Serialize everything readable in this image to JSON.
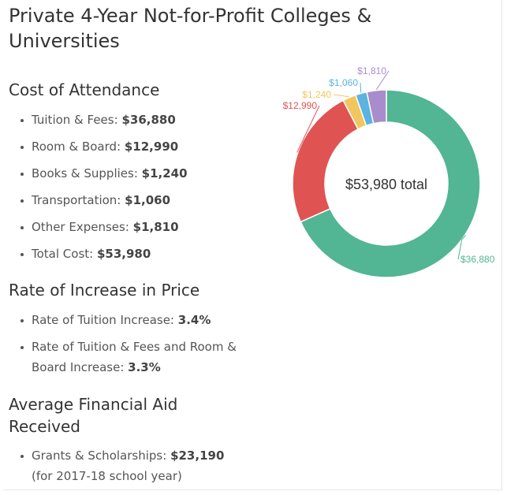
{
  "title": "Private 4-Year Not-for-Profit Colleges & Universities",
  "cost": {
    "heading": "Cost of Attendance",
    "items": [
      {
        "label": "Tuition & Fees:",
        "value": "$36,880"
      },
      {
        "label": "Room & Board:",
        "value": "$12,990"
      },
      {
        "label": "Books & Supplies:",
        "value": "$1,240"
      },
      {
        "label": "Transportation:",
        "value": "$1,060"
      },
      {
        "label": "Other Expenses:",
        "value": "$1,810"
      },
      {
        "label": "Total Cost:",
        "value": "$53,980"
      }
    ]
  },
  "rate": {
    "heading": "Rate of Increase in Price",
    "items": [
      {
        "label": "Rate of Tuition Increase:",
        "value": "3.4%"
      },
      {
        "label": "Rate of Tuition & Fees and Room & Board Increase:",
        "value": "3.3%"
      }
    ]
  },
  "aid": {
    "heading": "Average Financial Aid Received",
    "items": [
      {
        "label": "Grants & Scholarships:",
        "value": "$23,190",
        "note": "(for 2017-18 school year)"
      }
    ]
  },
  "chart_data": {
    "type": "pie",
    "donut": true,
    "center_label": "$53,980 total",
    "slices": [
      {
        "label": "$36,880",
        "value": 36880,
        "color": "#52b593"
      },
      {
        "label": "$12,990",
        "value": 12990,
        "color": "#e05353"
      },
      {
        "label": "$1,240",
        "value": 1240,
        "color": "#f0c75e"
      },
      {
        "label": "$1,060",
        "value": 1060,
        "color": "#5cb3e0"
      },
      {
        "label": "$1,810",
        "value": 1810,
        "color": "#a98ccb"
      }
    ]
  }
}
